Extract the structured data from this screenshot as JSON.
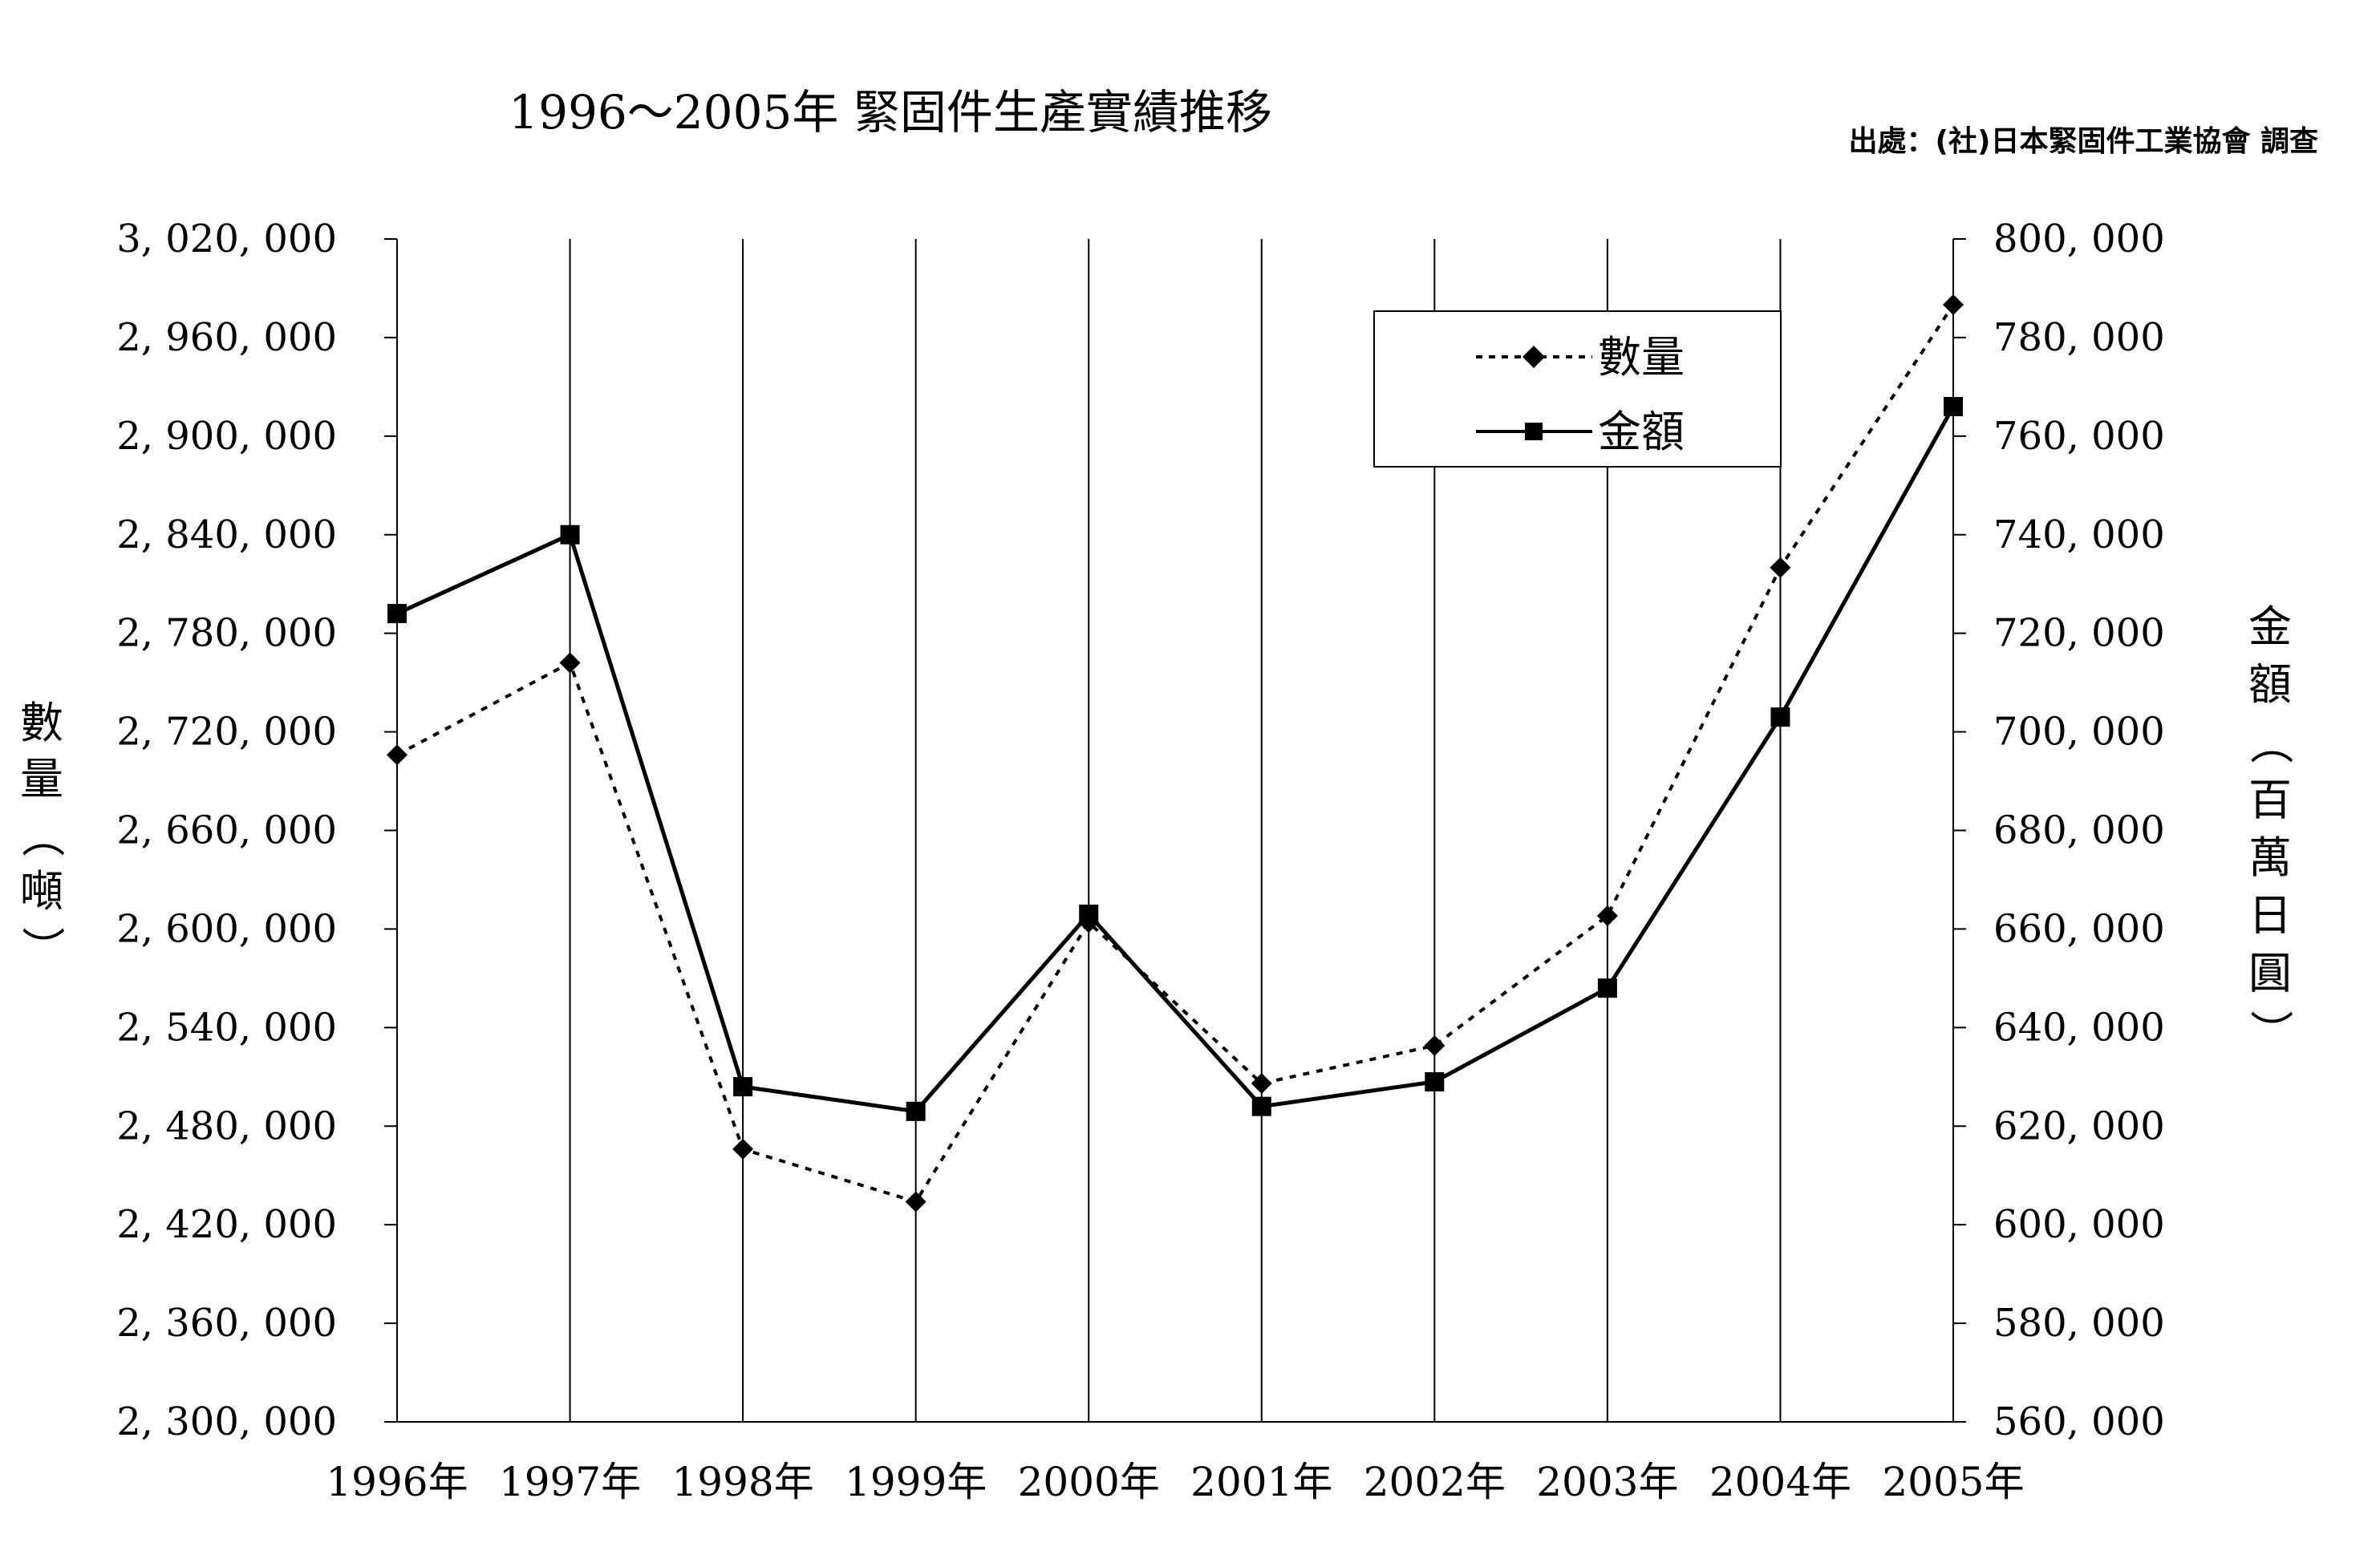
{
  "chart_data": {
    "type": "line",
    "title": "1996～2005年 緊固件生產實績推移",
    "source_note": "出處：(社)日本緊固件工業協會 調查",
    "categories": [
      "1996年",
      "1997年",
      "1998年",
      "1999年",
      "2000年",
      "2001年",
      "2002年",
      "2003年",
      "2004年",
      "2005年"
    ],
    "y_left": {
      "label": "數量（噸）",
      "ylim": [
        2300000,
        3020000
      ],
      "ticks": [
        3020000,
        2960000,
        2900000,
        2840000,
        2780000,
        2720000,
        2660000,
        2600000,
        2540000,
        2480000,
        2420000,
        2360000,
        2300000
      ],
      "tick_labels": [
        "3, 020, 000",
        "2, 960, 000",
        "2, 900, 000",
        "2, 840, 000",
        "2, 780, 000",
        "2, 720, 000",
        "2, 660, 000",
        "2, 600, 000",
        "2, 540, 000",
        "2, 480, 000",
        "2, 420, 000",
        "2, 360, 000",
        "2, 300, 000"
      ]
    },
    "y_right": {
      "label": "金額（百萬日圓）",
      "ylim": [
        560000,
        800000
      ],
      "ticks": [
        800000,
        780000,
        760000,
        740000,
        720000,
        700000,
        680000,
        660000,
        640000,
        620000,
        600000,
        580000,
        560000
      ],
      "tick_labels": [
        "800, 000",
        "780, 000",
        "760, 000",
        "740, 000",
        "720, 000",
        "700, 000",
        "680, 000",
        "660, 000",
        "640, 000",
        "620, 000",
        "600, 000",
        "580, 000",
        "560, 000"
      ]
    },
    "series": [
      {
        "name": "數量",
        "axis": "left",
        "style": "dotted",
        "marker": "diamond",
        "values": [
          2706000,
          2762000,
          2466000,
          2434000,
          2604000,
          2506000,
          2529000,
          2608000,
          2820000,
          2980000
        ]
      },
      {
        "name": "金額",
        "axis": "right",
        "style": "solid",
        "marker": "square",
        "values": [
          724000,
          740000,
          628000,
          623000,
          663000,
          624000,
          629000,
          648000,
          703000,
          766000
        ]
      }
    ],
    "grid": "vertical",
    "legend_position": "top-right"
  }
}
